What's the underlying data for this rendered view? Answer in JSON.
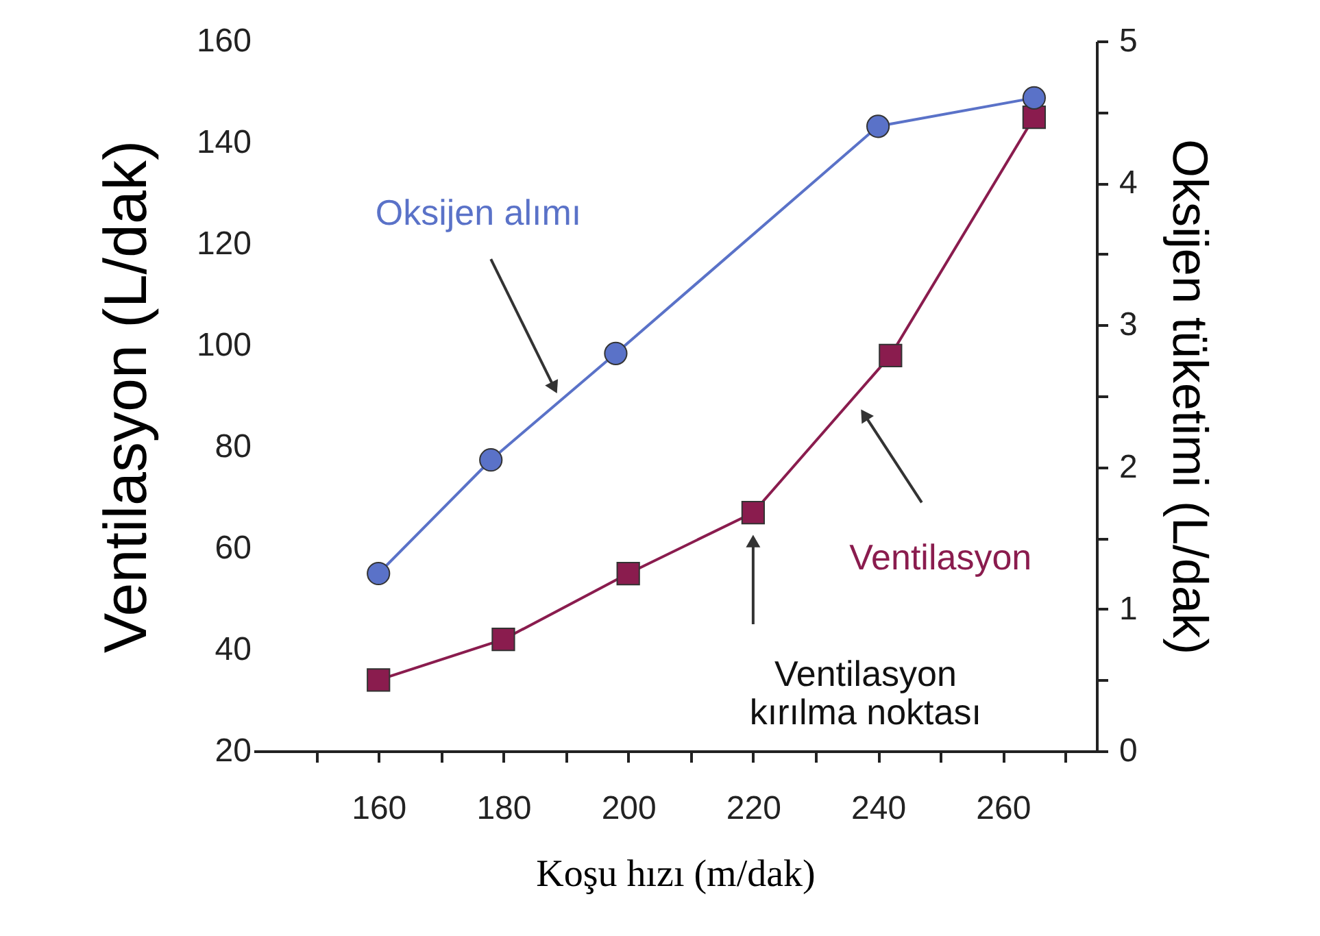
{
  "chart_data": {
    "type": "line",
    "xlabel": "Koşu hızı (m/dak)",
    "ylabel": "Ventilasyon  (L/dak)",
    "y2label": "Oksijen tüketimi  (L/dak)",
    "series": [
      {
        "name": "Ventilasyon",
        "color": "#8a1c4e",
        "marker": "square",
        "x": [
          160,
          180,
          200,
          220,
          242,
          265
        ],
        "values": [
          34,
          42,
          55,
          67,
          98,
          145
        ]
      },
      {
        "name": "Oksijen alımı",
        "color": "#5a72c8",
        "marker": "circle",
        "axis": "y2",
        "x": [
          160,
          178,
          198,
          240,
          265
        ],
        "values": [
          1.25,
          2.05,
          2.8,
          4.4,
          4.6
        ]
      }
    ],
    "annotations": [
      "Ventilasyon\nkırılma noktası"
    ],
    "xlim": [
      140,
      275
    ],
    "xticks": [
      {
        "value": 150,
        "label": null
      },
      160,
      {
        "value": 170,
        "label": null
      },
      180,
      {
        "value": 190,
        "label": null
      },
      200,
      {
        "value": 210,
        "label": null
      },
      220,
      {
        "value": 230,
        "label": null
      },
      240,
      {
        "value": 250,
        "label": null
      },
      260,
      {
        "value": 270,
        "label": null
      }
    ],
    "ylim": [
      20,
      160
    ],
    "yticks": [
      20,
      40,
      60,
      80,
      100,
      120,
      140,
      160
    ],
    "y2lim": [
      0,
      5
    ],
    "y2ticks": [
      0,
      {
        "value": 0.5,
        "label": null
      },
      1,
      {
        "value": 1.5,
        "label": null
      },
      2,
      {
        "value": 2.5,
        "label": null
      },
      3,
      {
        "value": 3.5,
        "label": null
      },
      4,
      {
        "value": 4.5,
        "label": null
      },
      5
    ],
    "grid": false
  }
}
